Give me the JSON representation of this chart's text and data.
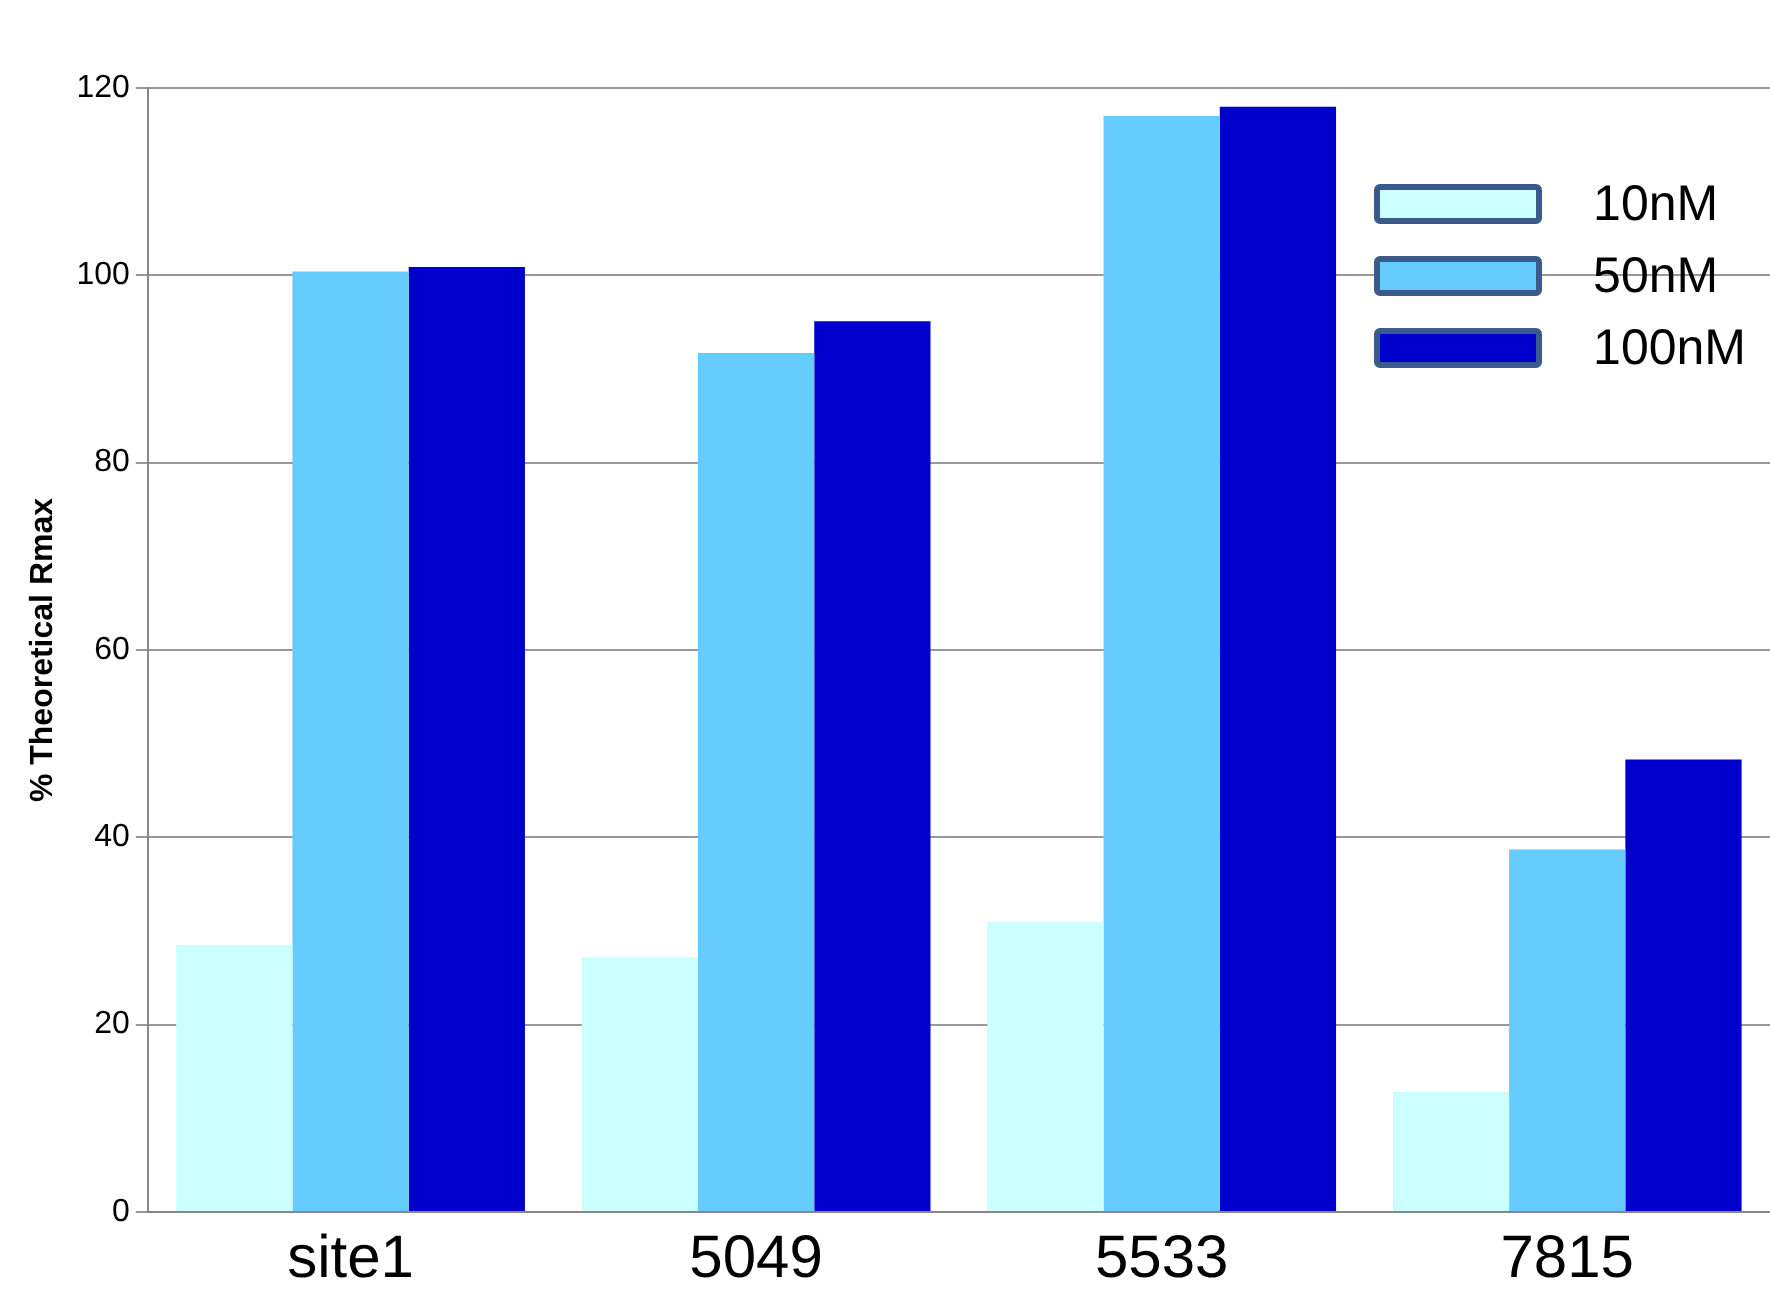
{
  "chart_data": {
    "type": "bar",
    "ylabel": "% Theoretical Rmax",
    "categories": [
      "site1",
      "5049",
      "5533",
      "7815"
    ],
    "series": [
      {
        "name": "10nM",
        "color": "#ccffff",
        "values": [
          28.5,
          27.2,
          31,
          12.8
        ]
      },
      {
        "name": "50nM",
        "color": "#66ccff",
        "values": [
          100.4,
          91.7,
          117,
          38.7
        ]
      },
      {
        "name": "100nM",
        "color": "#0000cc",
        "values": [
          100.9,
          95.1,
          118,
          48.3
        ]
      }
    ],
    "ylim": [
      0,
      120
    ],
    "yticks": [
      0,
      20,
      40,
      60,
      80,
      100,
      120
    ],
    "grid": "y",
    "legend": "top right"
  }
}
